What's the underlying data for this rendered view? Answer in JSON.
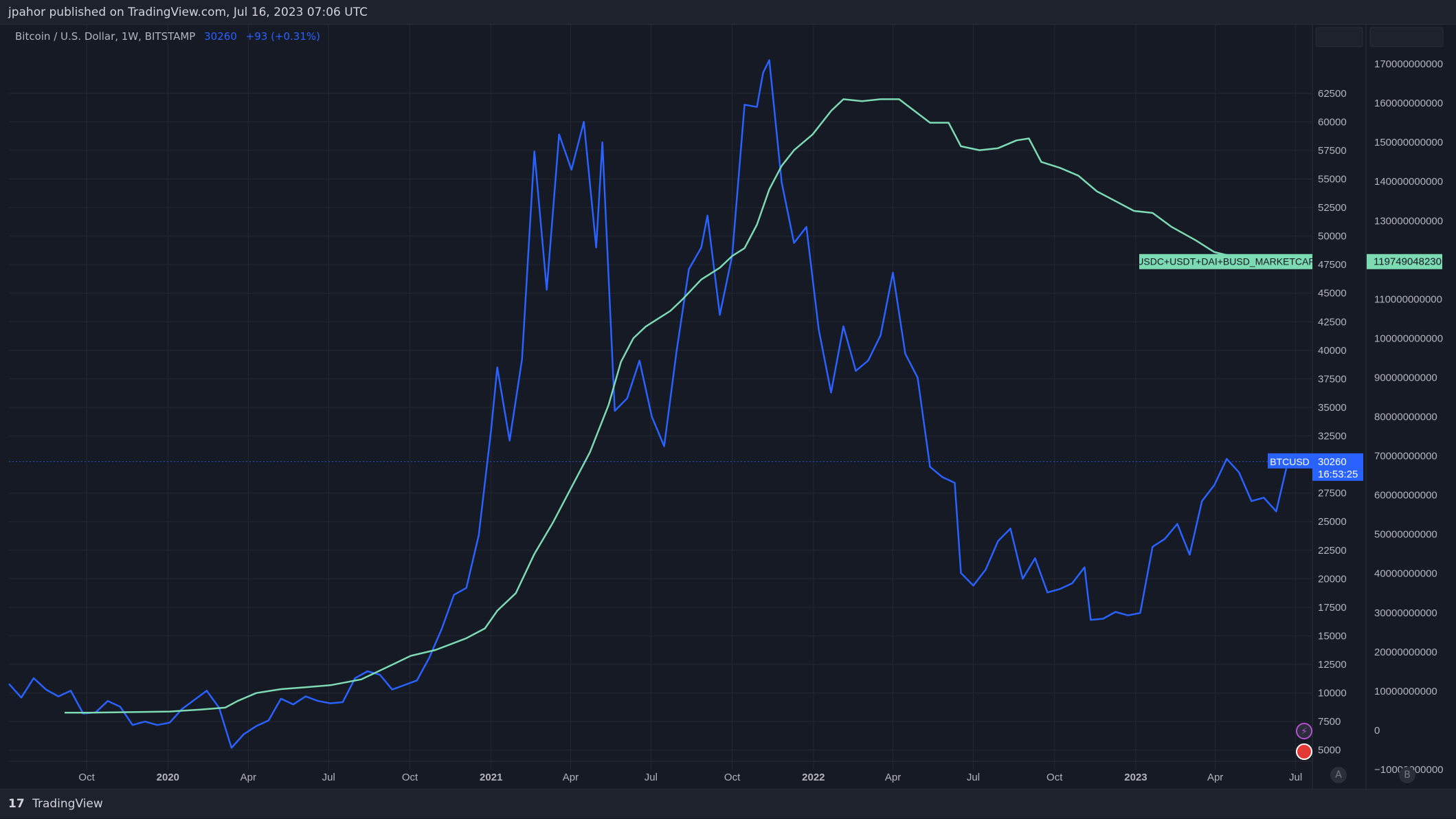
{
  "header": {
    "published_text": "jpahor published on TradingView.com, Jul 16, 2023 07:06 UTC"
  },
  "legend": {
    "symbol": "Bitcoin / U.S. Dollar, 1W, BITSTAMP",
    "price": "30260",
    "change": "+93 (+0.31%)"
  },
  "footer": {
    "brand": "TradingView"
  },
  "scale_buttons": {
    "a": "A",
    "b": "B"
  },
  "colors": {
    "background": "#161a25",
    "btc_line": "#2962ff",
    "stable_line": "#7ddbb4",
    "grid": "#242833",
    "axis_text": "#b2b5be"
  },
  "chart_data": {
    "type": "line",
    "left_axis_ticks": [
      5000,
      7500,
      10000,
      12500,
      15000,
      17500,
      20000,
      22500,
      25000,
      27500,
      32500,
      35000,
      37500,
      40000,
      42500,
      45000,
      47500,
      50000,
      52500,
      55000,
      57500,
      60000,
      62500
    ],
    "left_axis_range": [
      3300,
      68500
    ],
    "right_axis_ticks": [
      "−10000000000",
      "0",
      "10000000000",
      "20000000000",
      "30000000000",
      "40000000000",
      "50000000000",
      "60000000000",
      "70000000000",
      "80000000000",
      "90000000000",
      "100000000000",
      "110000000000",
      "130000000000",
      "140000000000",
      "150000000000",
      "160000000000",
      "170000000000"
    ],
    "right_axis_range": [
      -10000000000,
      180000000000
    ],
    "x_ticks": [
      {
        "label": "Oct",
        "date": "2019-10-01",
        "bold": false
      },
      {
        "label": "2020",
        "date": "2020-01-01",
        "bold": true
      },
      {
        "label": "Apr",
        "date": "2020-04-01",
        "bold": false
      },
      {
        "label": "Jul",
        "date": "2020-07-01",
        "bold": false
      },
      {
        "label": "Oct",
        "date": "2020-10-01",
        "bold": false
      },
      {
        "label": "2021",
        "date": "2021-01-01",
        "bold": true
      },
      {
        "label": "Apr",
        "date": "2021-04-01",
        "bold": false
      },
      {
        "label": "Jul",
        "date": "2021-07-01",
        "bold": false
      },
      {
        "label": "Oct",
        "date": "2021-10-01",
        "bold": false
      },
      {
        "label": "2022",
        "date": "2022-01-01",
        "bold": true
      },
      {
        "label": "Apr",
        "date": "2022-04-01",
        "bold": false
      },
      {
        "label": "Jul",
        "date": "2022-07-01",
        "bold": false
      },
      {
        "label": "Oct",
        "date": "2022-10-01",
        "bold": false
      },
      {
        "label": "2023",
        "date": "2023-01-01",
        "bold": true
      },
      {
        "label": "Apr",
        "date": "2023-04-01",
        "bold": false
      },
      {
        "label": "Jul",
        "date": "2023-07-01",
        "bold": false
      }
    ],
    "x_range": [
      "2019-07-05",
      "2023-07-20"
    ],
    "grid": true,
    "series": [
      {
        "name": "BTCUSD",
        "axis": "left",
        "color": "#2962ff",
        "last_label": "30260",
        "countdown": "16:53:25",
        "points": [
          [
            "2019-07-05",
            10800
          ],
          [
            "2019-07-19",
            9600
          ],
          [
            "2019-08-02",
            11300
          ],
          [
            "2019-08-16",
            10300
          ],
          [
            "2019-08-30",
            9700
          ],
          [
            "2019-09-13",
            10200
          ],
          [
            "2019-09-27",
            8200
          ],
          [
            "2019-10-11",
            8300
          ],
          [
            "2019-10-25",
            9300
          ],
          [
            "2019-11-08",
            8800
          ],
          [
            "2019-11-22",
            7200
          ],
          [
            "2019-12-06",
            7500
          ],
          [
            "2019-12-20",
            7200
          ],
          [
            "2020-01-03",
            7400
          ],
          [
            "2020-01-17",
            8600
          ],
          [
            "2020-01-31",
            9400
          ],
          [
            "2020-02-14",
            10200
          ],
          [
            "2020-02-28",
            8700
          ],
          [
            "2020-03-13",
            5200
          ],
          [
            "2020-03-27",
            6400
          ],
          [
            "2020-04-10",
            7100
          ],
          [
            "2020-04-24",
            7600
          ],
          [
            "2020-05-08",
            9500
          ],
          [
            "2020-05-22",
            9000
          ],
          [
            "2020-06-05",
            9700
          ],
          [
            "2020-06-19",
            9300
          ],
          [
            "2020-07-03",
            9100
          ],
          [
            "2020-07-17",
            9200
          ],
          [
            "2020-07-31",
            11300
          ],
          [
            "2020-08-14",
            11900
          ],
          [
            "2020-08-28",
            11600
          ],
          [
            "2020-09-11",
            10300
          ],
          [
            "2020-09-25",
            10700
          ],
          [
            "2020-10-09",
            11100
          ],
          [
            "2020-10-23",
            13100
          ],
          [
            "2020-11-06",
            15600
          ],
          [
            "2020-11-20",
            18600
          ],
          [
            "2020-12-04",
            19200
          ],
          [
            "2020-12-18",
            23800
          ],
          [
            "2021-01-01",
            33000
          ],
          [
            "2021-01-08",
            38500
          ],
          [
            "2021-01-22",
            32100
          ],
          [
            "2021-02-05",
            39200
          ],
          [
            "2021-02-19",
            57400
          ],
          [
            "2021-03-05",
            45300
          ],
          [
            "2021-03-19",
            58900
          ],
          [
            "2021-04-02",
            55800
          ],
          [
            "2021-04-16",
            60000
          ],
          [
            "2021-04-30",
            49000
          ],
          [
            "2021-05-07",
            58200
          ],
          [
            "2021-05-21",
            34700
          ],
          [
            "2021-06-04",
            35800
          ],
          [
            "2021-06-18",
            39100
          ],
          [
            "2021-07-02",
            34200
          ],
          [
            "2021-07-16",
            31600
          ],
          [
            "2021-07-30",
            39900
          ],
          [
            "2021-08-13",
            47100
          ],
          [
            "2021-08-27",
            49000
          ],
          [
            "2021-09-03",
            51800
          ],
          [
            "2021-09-17",
            43100
          ],
          [
            "2021-10-01",
            48300
          ],
          [
            "2021-10-15",
            61500
          ],
          [
            "2021-10-29",
            61300
          ],
          [
            "2021-11-05",
            64300
          ],
          [
            "2021-11-12",
            65400
          ],
          [
            "2021-11-26",
            54700
          ],
          [
            "2021-12-10",
            49400
          ],
          [
            "2021-12-24",
            50800
          ],
          [
            "2022-01-07",
            41800
          ],
          [
            "2022-01-21",
            36300
          ],
          [
            "2022-02-04",
            42100
          ],
          [
            "2022-02-18",
            38200
          ],
          [
            "2022-03-04",
            39100
          ],
          [
            "2022-03-18",
            41300
          ],
          [
            "2022-04-01",
            46800
          ],
          [
            "2022-04-15",
            39700
          ],
          [
            "2022-04-29",
            37600
          ],
          [
            "2022-05-13",
            29800
          ],
          [
            "2022-05-27",
            28900
          ],
          [
            "2022-06-10",
            28400
          ],
          [
            "2022-06-17",
            20500
          ],
          [
            "2022-07-01",
            19400
          ],
          [
            "2022-07-15",
            20800
          ],
          [
            "2022-07-29",
            23300
          ],
          [
            "2022-08-12",
            24400
          ],
          [
            "2022-08-26",
            20000
          ],
          [
            "2022-09-09",
            21800
          ],
          [
            "2022-09-23",
            18800
          ],
          [
            "2022-10-07",
            19100
          ],
          [
            "2022-10-21",
            19600
          ],
          [
            "2022-11-04",
            21000
          ],
          [
            "2022-11-11",
            16400
          ],
          [
            "2022-11-25",
            16500
          ],
          [
            "2022-12-09",
            17100
          ],
          [
            "2022-12-23",
            16800
          ],
          [
            "2023-01-06",
            17000
          ],
          [
            "2023-01-20",
            22800
          ],
          [
            "2023-02-03",
            23500
          ],
          [
            "2023-02-17",
            24800
          ],
          [
            "2023-03-03",
            22100
          ],
          [
            "2023-03-17",
            26800
          ],
          [
            "2023-03-31",
            28200
          ],
          [
            "2023-04-14",
            30500
          ],
          [
            "2023-04-28",
            29300
          ],
          [
            "2023-05-12",
            26800
          ],
          [
            "2023-05-26",
            27100
          ],
          [
            "2023-06-09",
            25900
          ],
          [
            "2023-06-23",
            30500
          ],
          [
            "2023-07-14",
            30260
          ]
        ]
      },
      {
        "name": "USDC+USDT+DAI+BUSD_MARKETCAP",
        "axis": "right",
        "color": "#7ddbb4",
        "last_label": "119749048230",
        "points": [
          [
            "2019-09-06",
            4500000000
          ],
          [
            "2019-10-04",
            4500000000
          ],
          [
            "2019-11-01",
            4600000000
          ],
          [
            "2019-12-06",
            4700000000
          ],
          [
            "2020-01-03",
            4800000000
          ],
          [
            "2020-02-07",
            5300000000
          ],
          [
            "2020-03-06",
            5800000000
          ],
          [
            "2020-03-20",
            7500000000
          ],
          [
            "2020-04-10",
            9500000000
          ],
          [
            "2020-05-08",
            10500000000
          ],
          [
            "2020-06-05",
            11000000000
          ],
          [
            "2020-07-03",
            11500000000
          ],
          [
            "2020-08-07",
            13000000000
          ],
          [
            "2020-09-04",
            16000000000
          ],
          [
            "2020-10-02",
            19000000000
          ],
          [
            "2020-10-30",
            20500000000
          ],
          [
            "2020-12-04",
            23500000000
          ],
          [
            "2020-12-25",
            26000000000
          ],
          [
            "2021-01-08",
            30500000000
          ],
          [
            "2021-01-29",
            35000000000
          ],
          [
            "2021-02-19",
            45000000000
          ],
          [
            "2021-03-12",
            53000000000
          ],
          [
            "2021-04-02",
            62000000000
          ],
          [
            "2021-04-23",
            71000000000
          ],
          [
            "2021-05-14",
            83000000000
          ],
          [
            "2021-05-28",
            94000000000
          ],
          [
            "2021-06-11",
            100000000000
          ],
          [
            "2021-06-25",
            103000000000
          ],
          [
            "2021-07-09",
            105000000000
          ],
          [
            "2021-07-23",
            107000000000
          ],
          [
            "2021-08-06",
            110000000000
          ],
          [
            "2021-08-27",
            115000000000
          ],
          [
            "2021-09-17",
            118000000000
          ],
          [
            "2021-10-01",
            121000000000
          ],
          [
            "2021-10-15",
            123000000000
          ],
          [
            "2021-10-29",
            129000000000
          ],
          [
            "2021-11-12",
            138000000000
          ],
          [
            "2021-11-26",
            144000000000
          ],
          [
            "2021-12-10",
            148000000000
          ],
          [
            "2021-12-31",
            152000000000
          ],
          [
            "2022-01-21",
            158000000000
          ],
          [
            "2022-02-04",
            161000000000
          ],
          [
            "2022-02-25",
            160500000000
          ],
          [
            "2022-03-18",
            161000000000
          ],
          [
            "2022-04-08",
            161000000000
          ],
          [
            "2022-05-13",
            155000000000
          ],
          [
            "2022-06-03",
            155000000000
          ],
          [
            "2022-06-17",
            149000000000
          ],
          [
            "2022-07-08",
            148000000000
          ],
          [
            "2022-07-29",
            148500000000
          ],
          [
            "2022-08-19",
            150500000000
          ],
          [
            "2022-09-02",
            151000000000
          ],
          [
            "2022-09-16",
            145000000000
          ],
          [
            "2022-10-07",
            143500000000
          ],
          [
            "2022-10-28",
            141500000000
          ],
          [
            "2022-11-18",
            137500000000
          ],
          [
            "2022-12-09",
            135000000000
          ],
          [
            "2022-12-30",
            132500000000
          ],
          [
            "2023-01-20",
            132000000000
          ],
          [
            "2023-02-10",
            128500000000
          ],
          [
            "2023-03-10",
            125000000000
          ],
          [
            "2023-03-31",
            122000000000
          ],
          [
            "2023-04-28",
            120500000000
          ],
          [
            "2023-05-26",
            119749048230
          ]
        ]
      }
    ],
    "series_labels": [
      "BTCUSD",
      "USDC+USDT+DAI+BUSD_MARKETCAP"
    ]
  }
}
